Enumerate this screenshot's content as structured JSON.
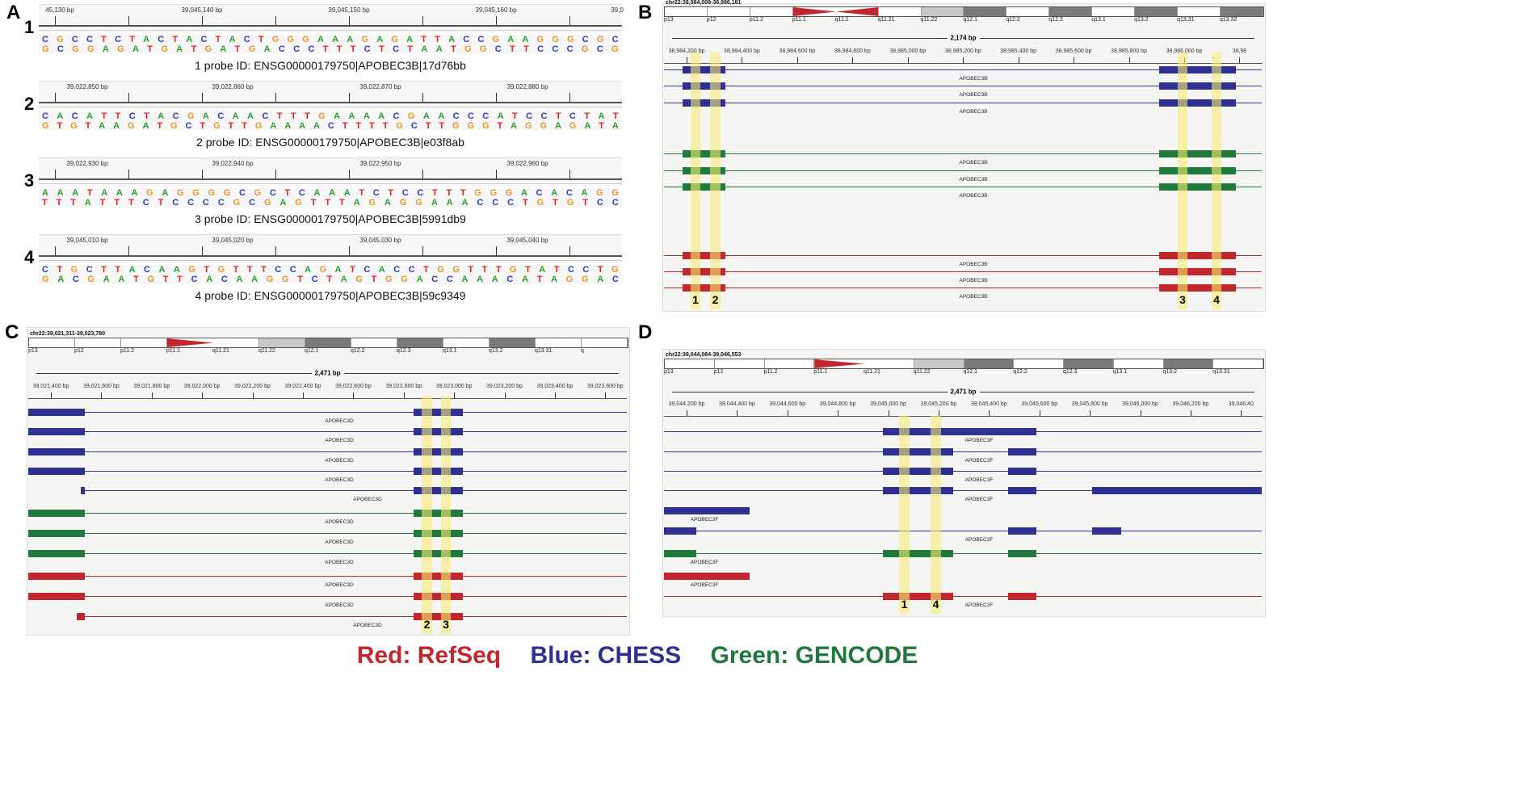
{
  "colors": {
    "refseq": "#c0282d",
    "chess": "#2e3192",
    "gencode": "#217a3c",
    "A": "#2aa02a",
    "C": "#2b3bc0",
    "G": "#e8962a",
    "T": "#e02424",
    "highlight": "#f5eb78"
  },
  "panel_a": {
    "label": "A",
    "tracks": [
      {
        "num": "1",
        "ticks": [
          "45,130 bp",
          "39,045,140 bp",
          "39,045,150 bp",
          "39,045,160 bp",
          "39,0"
        ],
        "top": "CGCCTCTACTACTACTGGGAAAGAGATTACCGAAGGGCGC",
        "bottom": "GCGGAGATGATGATGACCCTTTCTCTAATGGCTTCCCGCG",
        "caption": "1 probe ID: ENSG00000179750|APOBEC3B|17d76bb"
      },
      {
        "num": "2",
        "ticks": [
          "39,022,850 bp",
          "39,022,860 bp",
          "39,022,870 bp",
          "39,022,880 bp"
        ],
        "top": "CACATTCTACGACAACTTTGAAAACGAACCCATCCTCTAT",
        "bottom": "GTGTAAGATGCTGTTGAAAACTTTTGCTTGGGTAGGAGATA",
        "caption": "2 probe ID: ENSG00000179750|APOBEC3B|e03f8ab"
      },
      {
        "num": "3",
        "ticks": [
          "39,022,930 bp",
          "39,022,940 bp",
          "39,022,950 bp",
          "39,022,960 bp"
        ],
        "top": "AAATAAAGAGGGGCGCTCAAATCTCCTTTGGGACACAGG",
        "bottom": "TTTATTTCTCCCCGCGAGTTTAGAGGAAACCCTGTGTCC",
        "caption": "3 probe ID: ENSG00000179750|APOBEC3B|5991db9"
      },
      {
        "num": "4",
        "ticks": [
          "39,045,010 bp",
          "39,045,020 bp",
          "39,045,030 bp",
          "39,045,040 bp"
        ],
        "top": "CTGCTTACAAGTGTTTCCAGATCACCTGGTTTGTATCCTG",
        "bottom": "GACGAATGTTCACAAGGTCTAGTGGACCAAACATAGGAC",
        "caption": "4 probe ID: ENSG00000179750|APOBEC3B|59c9349"
      }
    ]
  },
  "panel_b": {
    "label": "B",
    "locus": "chr22:38,984,009-38,986,181",
    "bands": [
      "p13",
      "p12",
      "p11.2",
      "p11.1",
      "q11.1",
      "q11.21",
      "q11.22",
      "q12.1",
      "q12.2",
      "q12.3",
      "q13.1",
      "q13.2",
      "q13.31",
      "q13.32"
    ],
    "span": "2,174 bp",
    "ticks": [
      "38,984,200 bp",
      "38,984,400 bp",
      "38,984,600 bp",
      "38,984,800 bp",
      "38,985,000 bp",
      "38,985,200 bp",
      "38,985,400 bp",
      "38,985,600 bp",
      "38,985,800 bp",
      "38,986,000 bp",
      "38,98"
    ],
    "rows": [
      {
        "source": "chess",
        "label": "APOBEC3B"
      },
      {
        "source": "chess",
        "label": "APOBEC3B"
      },
      {
        "source": "chess",
        "label": "APOBEC3B"
      },
      {
        "source": "gencode",
        "label": "APOBEC3B"
      },
      {
        "source": "gencode",
        "label": "APOBEC3B"
      },
      {
        "source": "gencode",
        "label": "APOBEC3B"
      },
      {
        "source": "refseq",
        "label": "APOBEC3B"
      },
      {
        "source": "refseq",
        "label": "APOBEC3B"
      },
      {
        "source": "refseq",
        "label": "APOBEC3B"
      }
    ],
    "probes": [
      "1",
      "2",
      "3",
      "4"
    ]
  },
  "panel_c": {
    "label": "C",
    "locus": "chr22:39,021,311-39,023,780",
    "bands": [
      "p13",
      "p12",
      "p11.2",
      "p11.1",
      "q11.21",
      "q11.22",
      "q12.1",
      "q12.2",
      "q12.3",
      "q13.1",
      "q13.2",
      "q13.31",
      "q"
    ],
    "span": "2,471 bp",
    "ticks": [
      "39,021,400 bp",
      "39,021,600 bp",
      "39,021,800 bp",
      "39,022,000 bp",
      "39,022,200 bp",
      "39,022,400 bp",
      "39,022,600 bp",
      "39,022,800 bp",
      "39,023,000 bp",
      "39,023,200 bp",
      "39,023,400 bp",
      "39,023,600 bp"
    ],
    "rows": [
      {
        "source": "chess",
        "label": "APOBEC3D"
      },
      {
        "source": "chess",
        "label": "APOBEC3D"
      },
      {
        "source": "chess",
        "label": "APOBEC3D"
      },
      {
        "source": "chess",
        "label": "APOBEC3D"
      },
      {
        "source": "chess",
        "label": "APOBEC3D"
      },
      {
        "source": "gencode",
        "label": "APOBEC3D"
      },
      {
        "source": "gencode",
        "label": "APOBEC3D"
      },
      {
        "source": "gencode",
        "label": "APOBEC3D"
      },
      {
        "source": "refseq",
        "label": "APOBEC3D"
      },
      {
        "source": "refseq",
        "label": "APOBEC3D"
      },
      {
        "source": "refseq",
        "label": "APOBEC3D"
      }
    ],
    "probes": [
      "2",
      "3"
    ]
  },
  "panel_d": {
    "label": "D",
    "locus": "chr22:39,044,084-39,046,553",
    "bands": [
      "p13",
      "p12",
      "p11.2",
      "p11.1",
      "q11.21",
      "q11.22",
      "q12.1",
      "q12.2",
      "q12.3",
      "q13.1",
      "q13.2",
      "q13.31"
    ],
    "span": "2,471 bp",
    "ticks": [
      "39,044,200 bp",
      "39,044,400 bp",
      "39,044,600 bp",
      "39,044,800 bp",
      "39,045,000 bp",
      "39,045,200 bp",
      "39,045,400 bp",
      "39,045,600 bp",
      "39,045,800 bp",
      "39,046,000 bp",
      "39,046,200 bp",
      "39,046,40"
    ],
    "rows": [
      {
        "source": "chess",
        "label": "APOBEC3F"
      },
      {
        "source": "chess",
        "label": "APOBEC3F"
      },
      {
        "source": "chess",
        "label": "APOBEC3F"
      },
      {
        "source": "chess",
        "label": "APOBEC3F"
      },
      {
        "source": "chess",
        "label": "APOBEC3F"
      },
      {
        "source": "chess",
        "label": "APOBEC3F"
      },
      {
        "source": "gencode",
        "label": "APOBEC3F"
      },
      {
        "source": "refseq",
        "label": "APOBEC3F"
      },
      {
        "source": "refseq",
        "label": "APOBEC3F"
      }
    ],
    "probes": [
      "1",
      "4"
    ]
  },
  "legend": {
    "refseq": "Red: RefSeq",
    "chess": "Blue: CHESS",
    "gencode": "Green: GENCODE"
  }
}
